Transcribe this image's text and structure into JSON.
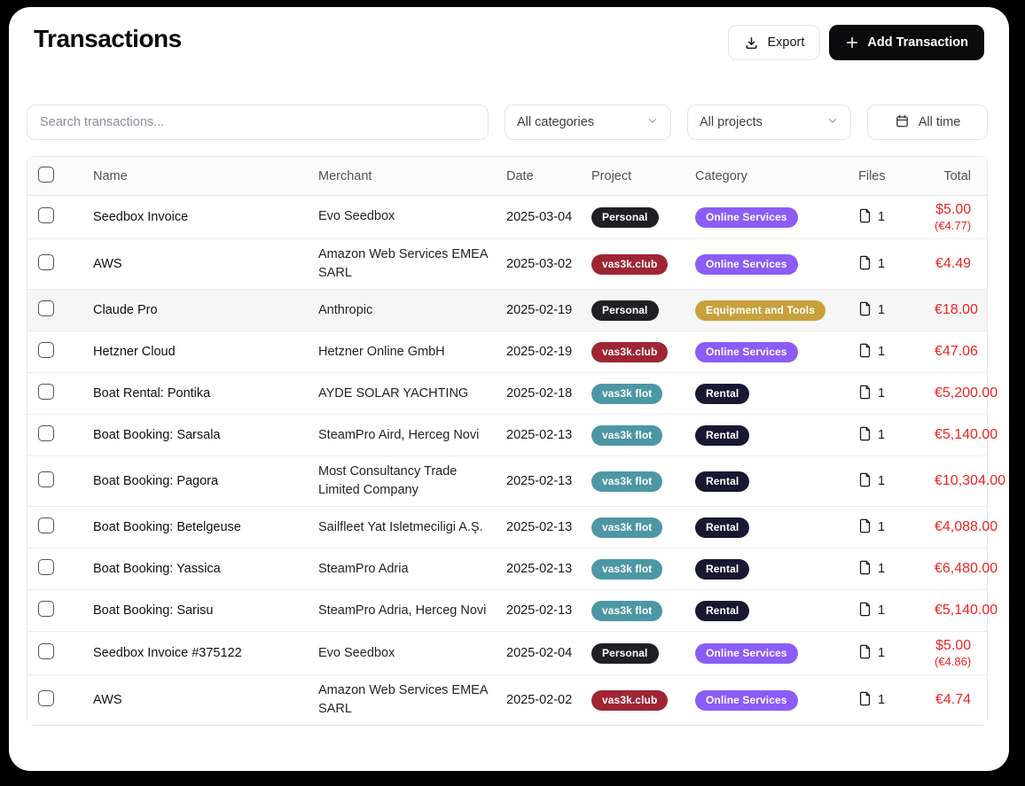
{
  "page": {
    "title": "Transactions"
  },
  "topbar": {
    "export_label": "Export",
    "add_transaction_label": "Add Transaction"
  },
  "filters": {
    "search_placeholder": "Search transactions...",
    "categories_value": "All categories",
    "projects_value": "All projects",
    "time_value": "All time"
  },
  "table": {
    "columns": [
      "Name",
      "Merchant",
      "Date",
      "Project",
      "Category",
      "Files",
      "Total"
    ],
    "amount_color": "#ef2222",
    "badge_colors": {
      "Personal": "#1f2025",
      "vas3k.club": "#9f2533",
      "vas3k flot": "#4d97a5",
      "Online Services": "#8b5cf6",
      "Equipment and Tools": "#c7a13c",
      "Rental": "#181832"
    },
    "rows": [
      {
        "name": "Seedbox Invoice",
        "merchant": "Evo Seedbox",
        "date": "2025-03-04",
        "project": "Personal",
        "category": "Online Services",
        "files": "1",
        "total": "$5.00",
        "total_sub": "(€4.77)",
        "highlighted": false
      },
      {
        "name": "AWS",
        "merchant": "Amazon Web Services EMEA SARL",
        "date": "2025-03-02",
        "project": "vas3k.club",
        "category": "Online Services",
        "files": "1",
        "total": "€4.49",
        "total_sub": "",
        "highlighted": false
      },
      {
        "name": "Claude Pro",
        "merchant": "Anthropic",
        "date": "2025-02-19",
        "project": "Personal",
        "category": "Equipment and Tools",
        "files": "1",
        "total": "€18.00",
        "total_sub": "",
        "highlighted": true
      },
      {
        "name": "Hetzner Cloud",
        "merchant": "Hetzner Online GmbH",
        "date": "2025-02-19",
        "project": "vas3k.club",
        "category": "Online Services",
        "files": "1",
        "total": "€47.06",
        "total_sub": "",
        "highlighted": false
      },
      {
        "name": "Boat Rental: Pontika",
        "merchant": "AYDE SOLAR YACHTING",
        "date": "2025-02-18",
        "project": "vas3k flot",
        "category": "Rental",
        "files": "1",
        "total": "€5,200.00",
        "total_sub": "",
        "highlighted": false
      },
      {
        "name": "Boat Booking: Sarsala",
        "merchant": "SteamPro Aird, Herceg Novi",
        "date": "2025-02-13",
        "project": "vas3k flot",
        "category": "Rental",
        "files": "1",
        "total": "€5,140.00",
        "total_sub": "",
        "highlighted": false
      },
      {
        "name": "Boat Booking: Pagora",
        "merchant": "Most Consultancy Trade Limited Company",
        "date": "2025-02-13",
        "project": "vas3k flot",
        "category": "Rental",
        "files": "1",
        "total": "€10,304.00",
        "total_sub": "",
        "highlighted": false
      },
      {
        "name": "Boat Booking: Betelgeuse",
        "merchant": "Sailfleet Yat Isletmeciligi A.Ş.",
        "date": "2025-02-13",
        "project": "vas3k flot",
        "category": "Rental",
        "files": "1",
        "total": "€4,088.00",
        "total_sub": "",
        "highlighted": false
      },
      {
        "name": "Boat Booking: Yassica",
        "merchant": "SteamPro Adria",
        "date": "2025-02-13",
        "project": "vas3k flot",
        "category": "Rental",
        "files": "1",
        "total": "€6,480.00",
        "total_sub": "",
        "highlighted": false
      },
      {
        "name": "Boat Booking: Sarisu",
        "merchant": "SteamPro Adria, Herceg Novi",
        "date": "2025-02-13",
        "project": "vas3k flot",
        "category": "Rental",
        "files": "1",
        "total": "€5,140.00",
        "total_sub": "",
        "highlighted": false
      },
      {
        "name": "Seedbox Invoice #375122",
        "merchant": "Evo Seedbox",
        "date": "2025-02-04",
        "project": "Personal",
        "category": "Online Services",
        "files": "1",
        "total": "$5.00",
        "total_sub": "(€4.86)",
        "highlighted": false
      },
      {
        "name": "AWS",
        "merchant": "Amazon Web Services EMEA SARL",
        "date": "2025-02-02",
        "project": "vas3k.club",
        "category": "Online Services",
        "files": "1",
        "total": "€4.74",
        "total_sub": "",
        "highlighted": false
      }
    ]
  }
}
